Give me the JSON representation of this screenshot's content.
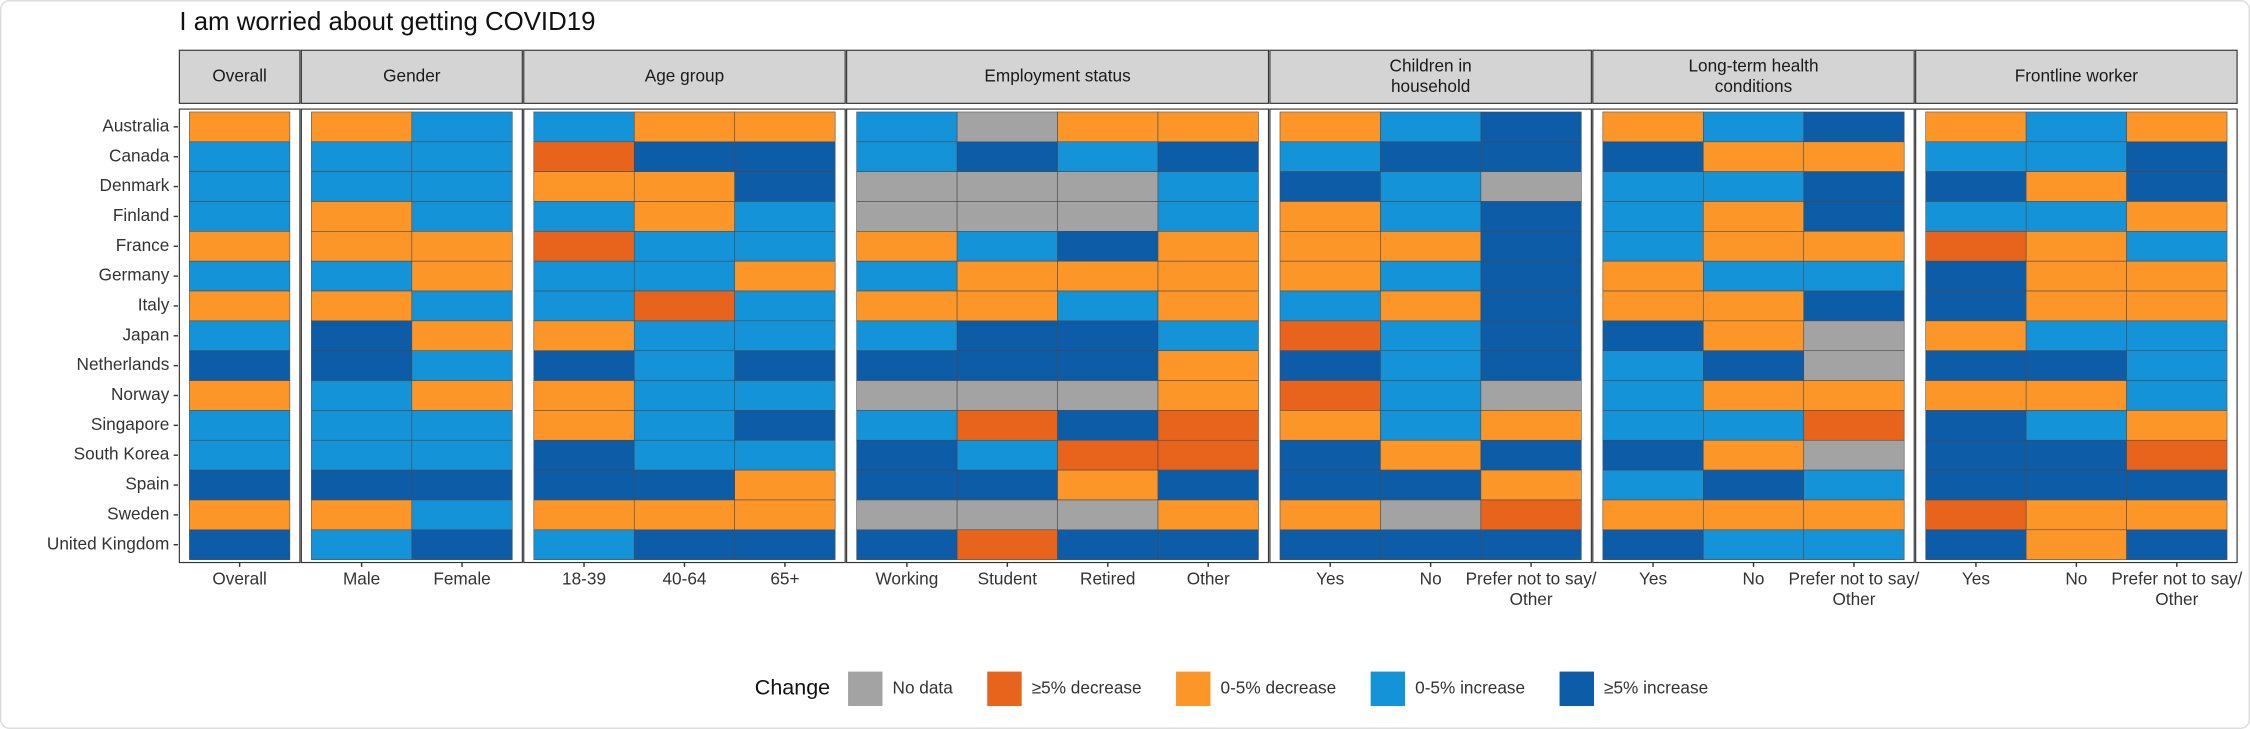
{
  "chart_data": {
    "type": "heatmap",
    "title": "I am worried about getting COVID19",
    "rows": [
      "Australia",
      "Canada",
      "Denmark",
      "Finland",
      "France",
      "Germany",
      "Italy",
      "Japan",
      "Netherlands",
      "Norway",
      "Singapore",
      "South Korea",
      "Spain",
      "Sweden",
      "United Kingdom"
    ],
    "legend": {
      "title": "Change",
      "items": [
        {
          "name": "No data",
          "color": "#a3a3a3"
        },
        {
          "name": "≥5% decrease",
          "color": "#e8641c"
        },
        {
          "name": "0-5% decrease",
          "color": "#fc9629"
        },
        {
          "name": "0-5% increase",
          "color": "#1593d9"
        },
        {
          "name": "≥5% increase",
          "color": "#0d5ca8"
        }
      ]
    },
    "panels": [
      {
        "name": "Overall",
        "columns": [
          "Overall"
        ],
        "values": [
          [
            "0-5% decrease"
          ],
          [
            "0-5% increase"
          ],
          [
            "0-5% increase"
          ],
          [
            "0-5% increase"
          ],
          [
            "0-5% decrease"
          ],
          [
            "0-5% increase"
          ],
          [
            "0-5% decrease"
          ],
          [
            "0-5% increase"
          ],
          [
            "≥5% increase"
          ],
          [
            "0-5% decrease"
          ],
          [
            "0-5% increase"
          ],
          [
            "0-5% increase"
          ],
          [
            "≥5% increase"
          ],
          [
            "0-5% decrease"
          ],
          [
            "≥5% increase"
          ]
        ]
      },
      {
        "name": "Gender",
        "columns": [
          "Male",
          "Female"
        ],
        "values": [
          [
            "0-5% decrease",
            "0-5% increase"
          ],
          [
            "0-5% increase",
            "0-5% increase"
          ],
          [
            "0-5% increase",
            "0-5% increase"
          ],
          [
            "0-5% decrease",
            "0-5% increase"
          ],
          [
            "0-5% decrease",
            "0-5% decrease"
          ],
          [
            "0-5% increase",
            "0-5% decrease"
          ],
          [
            "0-5% decrease",
            "0-5% increase"
          ],
          [
            "≥5% increase",
            "0-5% decrease"
          ],
          [
            "≥5% increase",
            "0-5% increase"
          ],
          [
            "0-5% increase",
            "0-5% decrease"
          ],
          [
            "0-5% increase",
            "0-5% increase"
          ],
          [
            "0-5% increase",
            "0-5% increase"
          ],
          [
            "≥5% increase",
            "≥5% increase"
          ],
          [
            "0-5% decrease",
            "0-5% increase"
          ],
          [
            "0-5% increase",
            "≥5% increase"
          ]
        ]
      },
      {
        "name": "Age group",
        "columns": [
          "18-39",
          "40-64",
          "65+"
        ],
        "values": [
          [
            "0-5% increase",
            "0-5% decrease",
            "0-5% decrease"
          ],
          [
            "≥5% decrease",
            "≥5% increase",
            "≥5% increase"
          ],
          [
            "0-5% decrease",
            "0-5% decrease",
            "≥5% increase"
          ],
          [
            "0-5% increase",
            "0-5% decrease",
            "0-5% increase"
          ],
          [
            "≥5% decrease",
            "0-5% increase",
            "0-5% increase"
          ],
          [
            "0-5% increase",
            "0-5% increase",
            "0-5% decrease"
          ],
          [
            "0-5% increase",
            "≥5% decrease",
            "0-5% increase"
          ],
          [
            "0-5% decrease",
            "0-5% increase",
            "0-5% increase"
          ],
          [
            "≥5% increase",
            "0-5% increase",
            "≥5% increase"
          ],
          [
            "0-5% decrease",
            "0-5% increase",
            "0-5% increase"
          ],
          [
            "0-5% decrease",
            "0-5% increase",
            "≥5% increase"
          ],
          [
            "≥5% increase",
            "0-5% increase",
            "0-5% increase"
          ],
          [
            "≥5% increase",
            "≥5% increase",
            "0-5% decrease"
          ],
          [
            "0-5% decrease",
            "0-5% decrease",
            "0-5% decrease"
          ],
          [
            "0-5% increase",
            "≥5% increase",
            "≥5% increase"
          ]
        ]
      },
      {
        "name": "Employment status",
        "columns": [
          "Working",
          "Student",
          "Retired",
          "Other"
        ],
        "values": [
          [
            "0-5% increase",
            "No data",
            "0-5% decrease",
            "0-5% decrease"
          ],
          [
            "0-5% increase",
            "≥5% increase",
            "0-5% increase",
            "≥5% increase"
          ],
          [
            "No data",
            "No data",
            "No data",
            "0-5% increase"
          ],
          [
            "No data",
            "No data",
            "No data",
            "0-5% increase"
          ],
          [
            "0-5% decrease",
            "0-5% increase",
            "≥5% increase",
            "0-5% decrease"
          ],
          [
            "0-5% increase",
            "0-5% decrease",
            "0-5% decrease",
            "0-5% decrease"
          ],
          [
            "0-5% decrease",
            "0-5% decrease",
            "0-5% increase",
            "0-5% decrease"
          ],
          [
            "0-5% increase",
            "≥5% increase",
            "≥5% increase",
            "0-5% increase"
          ],
          [
            "≥5% increase",
            "≥5% increase",
            "≥5% increase",
            "0-5% decrease"
          ],
          [
            "No data",
            "No data",
            "No data",
            "0-5% decrease"
          ],
          [
            "0-5% increase",
            "≥5% decrease",
            "≥5% increase",
            "≥5% decrease"
          ],
          [
            "≥5% increase",
            "0-5% increase",
            "≥5% decrease",
            "≥5% decrease"
          ],
          [
            "≥5% increase",
            "≥5% increase",
            "0-5% decrease",
            "≥5% increase"
          ],
          [
            "No data",
            "No data",
            "No data",
            "0-5% decrease"
          ],
          [
            "≥5% increase",
            "≥5% decrease",
            "≥5% increase",
            "≥5% increase"
          ]
        ]
      },
      {
        "name": "Children in\nhousehold",
        "columns": [
          "Yes",
          "No",
          "Prefer not to say/\nOther"
        ],
        "values": [
          [
            "0-5% decrease",
            "0-5% increase",
            "≥5% increase"
          ],
          [
            "0-5% increase",
            "≥5% increase",
            "≥5% increase"
          ],
          [
            "≥5% increase",
            "0-5% increase",
            "No data"
          ],
          [
            "0-5% decrease",
            "0-5% increase",
            "≥5% increase"
          ],
          [
            "0-5% decrease",
            "0-5% decrease",
            "≥5% increase"
          ],
          [
            "0-5% decrease",
            "0-5% increase",
            "≥5% increase"
          ],
          [
            "0-5% increase",
            "0-5% decrease",
            "≥5% increase"
          ],
          [
            "≥5% decrease",
            "0-5% increase",
            "≥5% increase"
          ],
          [
            "≥5% increase",
            "0-5% increase",
            "≥5% increase"
          ],
          [
            "≥5% decrease",
            "0-5% increase",
            "No data"
          ],
          [
            "0-5% decrease",
            "0-5% increase",
            "0-5% decrease"
          ],
          [
            "≥5% increase",
            "0-5% decrease",
            "≥5% increase"
          ],
          [
            "≥5% increase",
            "≥5% increase",
            "0-5% decrease"
          ],
          [
            "0-5% decrease",
            "No data",
            "≥5% decrease"
          ],
          [
            "≥5% increase",
            "≥5% increase",
            "≥5% increase"
          ]
        ]
      },
      {
        "name": "Long-term health\nconditions",
        "columns": [
          "Yes",
          "No",
          "Prefer not to say/\nOther"
        ],
        "values": [
          [
            "0-5% decrease",
            "0-5% increase",
            "≥5% increase"
          ],
          [
            "≥5% increase",
            "0-5% decrease",
            "0-5% decrease"
          ],
          [
            "0-5% increase",
            "0-5% increase",
            "≥5% increase"
          ],
          [
            "0-5% increase",
            "0-5% decrease",
            "≥5% increase"
          ],
          [
            "0-5% increase",
            "0-5% decrease",
            "0-5% decrease"
          ],
          [
            "0-5% decrease",
            "0-5% increase",
            "0-5% increase"
          ],
          [
            "0-5% decrease",
            "0-5% decrease",
            "≥5% increase"
          ],
          [
            "≥5% increase",
            "0-5% decrease",
            "No data"
          ],
          [
            "0-5% increase",
            "≥5% increase",
            "No data"
          ],
          [
            "0-5% increase",
            "0-5% decrease",
            "0-5% decrease"
          ],
          [
            "0-5% increase",
            "0-5% increase",
            "≥5% decrease"
          ],
          [
            "≥5% increase",
            "0-5% decrease",
            "No data"
          ],
          [
            "0-5% increase",
            "≥5% increase",
            "0-5% increase"
          ],
          [
            "0-5% decrease",
            "0-5% decrease",
            "0-5% decrease"
          ],
          [
            "≥5% increase",
            "0-5% increase",
            "0-5% increase"
          ]
        ]
      },
      {
        "name": "Frontline worker",
        "columns": [
          "Yes",
          "No",
          "Prefer not to say/\nOther"
        ],
        "values": [
          [
            "0-5% decrease",
            "0-5% increase",
            "0-5% decrease"
          ],
          [
            "0-5% increase",
            "0-5% increase",
            "≥5% increase"
          ],
          [
            "≥5% increase",
            "0-5% decrease",
            "≥5% increase"
          ],
          [
            "0-5% increase",
            "0-5% increase",
            "0-5% decrease"
          ],
          [
            "≥5% decrease",
            "0-5% decrease",
            "0-5% increase"
          ],
          [
            "≥5% increase",
            "0-5% decrease",
            "0-5% decrease"
          ],
          [
            "≥5% increase",
            "0-5% decrease",
            "0-5% decrease"
          ],
          [
            "0-5% decrease",
            "0-5% increase",
            "0-5% increase"
          ],
          [
            "≥5% increase",
            "≥5% increase",
            "0-5% increase"
          ],
          [
            "0-5% decrease",
            "0-5% decrease",
            "0-5% increase"
          ],
          [
            "≥5% increase",
            "0-5% increase",
            "0-5% decrease"
          ],
          [
            "≥5% increase",
            "≥5% increase",
            "≥5% decrease"
          ],
          [
            "≥5% increase",
            "≥5% increase",
            "≥5% increase"
          ],
          [
            "≥5% decrease",
            "0-5% decrease",
            "0-5% decrease"
          ],
          [
            "≥5% increase",
            "0-5% decrease",
            "≥5% increase"
          ]
        ]
      }
    ]
  }
}
